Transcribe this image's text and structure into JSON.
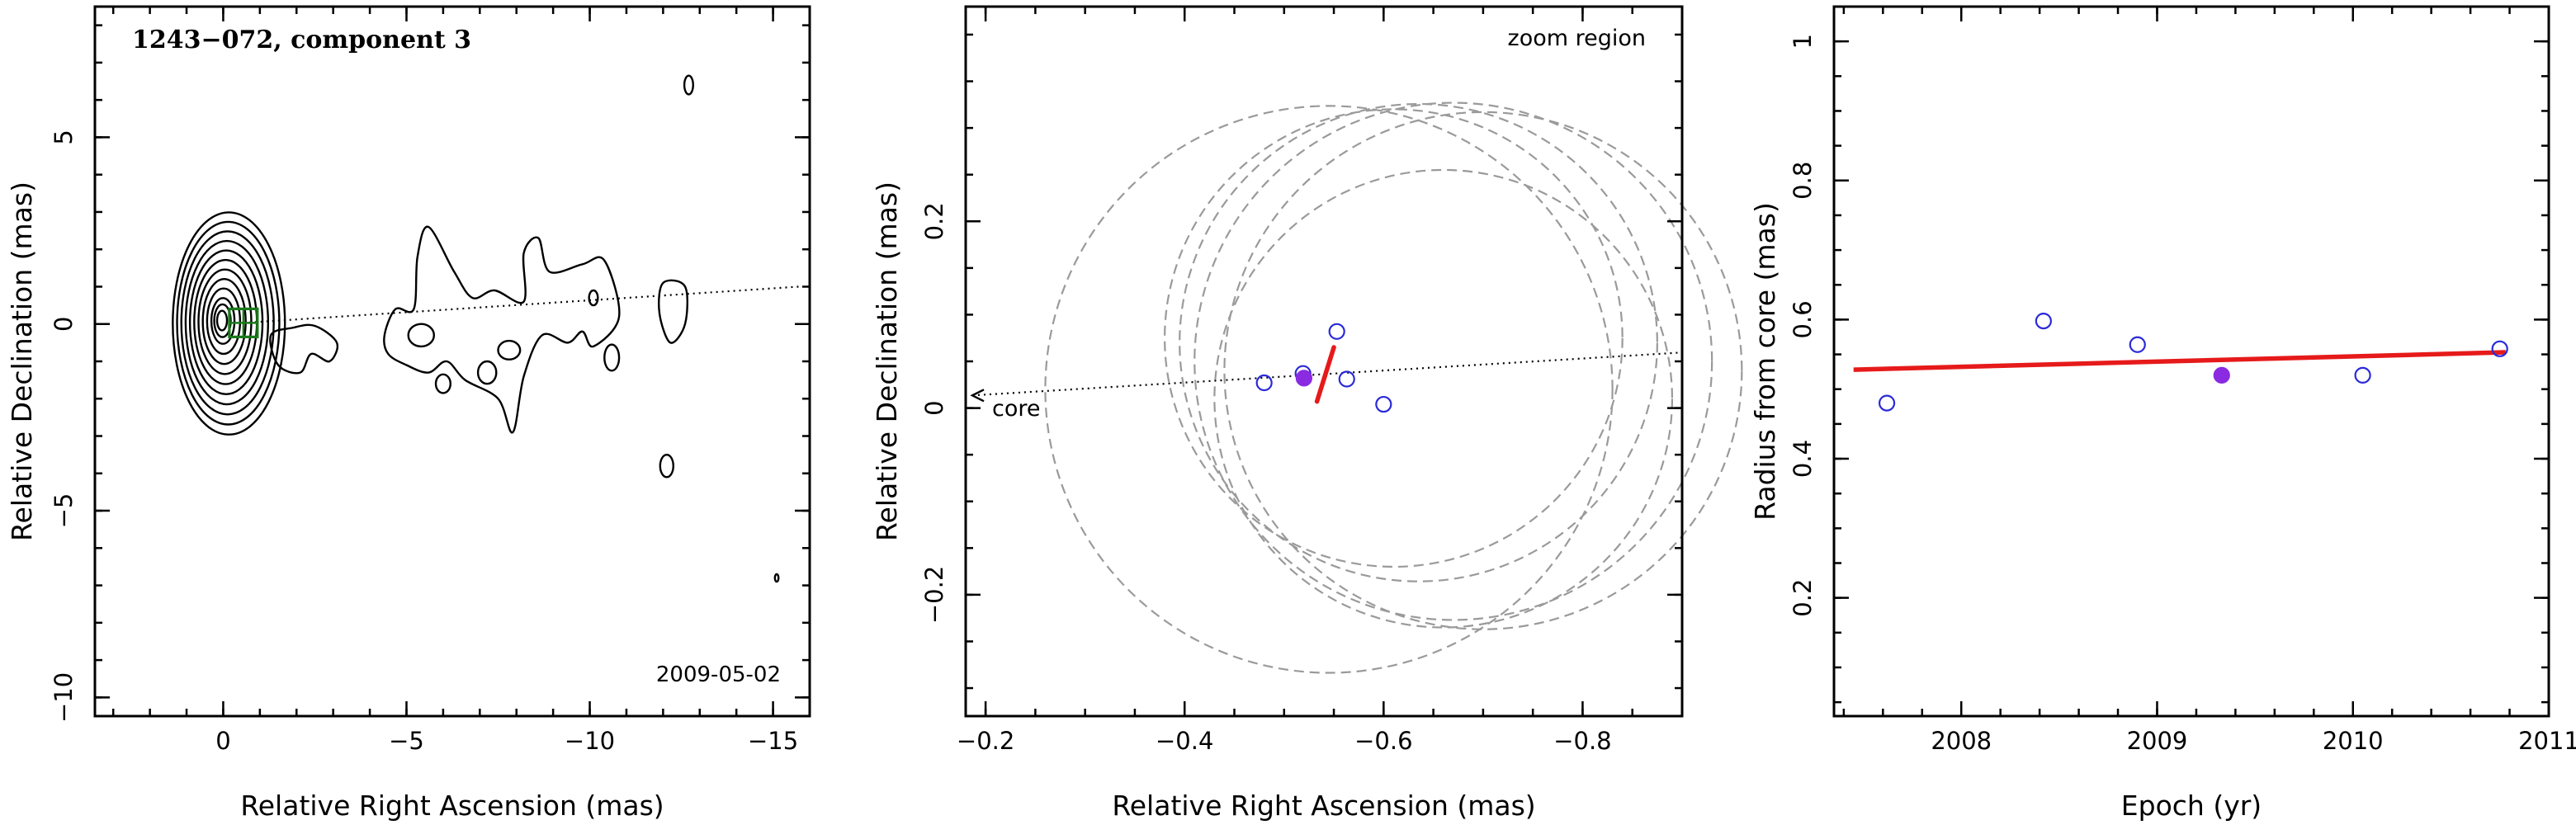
{
  "chart_data": [
    {
      "type": "scatter",
      "panel": "contour-map",
      "title": "1243−072, component 3",
      "xlabel": "Relative Right Ascension (mas)",
      "ylabel": "Relative Declination (mas)",
      "xlim": [
        3.5,
        -16
      ],
      "ylim": [
        -10.5,
        8.5
      ],
      "xticks": [
        0,
        -5,
        -10,
        -15
      ],
      "xtick_labels": [
        "0",
        "−5",
        "−10",
        "−15"
      ],
      "yticks": [
        -10,
        -5,
        0,
        5
      ],
      "ytick_labels": [
        "−10",
        "−5",
        "0",
        "5"
      ],
      "annotation": "2009-05-02",
      "marker": {
        "shape": "square",
        "color": "#1a7a1a",
        "x": -0.55,
        "y": 0.03
      },
      "direction_line": {
        "x": [
          -0.55,
          -15.7
        ],
        "y": [
          0.03,
          1.0
        ]
      },
      "contours": [
        {
          "kind": "core",
          "cx": 0.05,
          "cy": 0.1,
          "levels": [
            0.15,
            0.25,
            0.35,
            0.5,
            0.65,
            0.8,
            0.95,
            1.1,
            1.25,
            1.4,
            1.55,
            1.7
          ],
          "rx_scale": 0.9,
          "ry_scale": 1.75
        },
        {
          "kind": "blob",
          "points": [
            [
              -4.4,
              -0.3
            ],
            [
              -4.7,
              0.4
            ],
            [
              -5.2,
              0.4
            ],
            [
              -5.3,
              1.8
            ],
            [
              -5.6,
              2.6
            ],
            [
              -6.3,
              1.4
            ],
            [
              -6.8,
              0.7
            ],
            [
              -7.4,
              0.9
            ],
            [
              -8.2,
              0.6
            ],
            [
              -8.2,
              1.9
            ],
            [
              -8.6,
              2.3
            ],
            [
              -8.9,
              1.4
            ],
            [
              -9.8,
              1.6
            ],
            [
              -10.4,
              1.7
            ],
            [
              -10.8,
              0.2
            ],
            [
              -10.1,
              -0.6
            ],
            [
              -9.8,
              -0.2
            ],
            [
              -9.4,
              -0.5
            ],
            [
              -8.7,
              -0.3
            ],
            [
              -8.2,
              -1.4
            ],
            [
              -7.9,
              -2.9
            ],
            [
              -7.5,
              -2.0
            ],
            [
              -6.6,
              -1.5
            ],
            [
              -6.1,
              -1.0
            ],
            [
              -5.6,
              -1.3
            ],
            [
              -5.0,
              -1.1
            ],
            [
              -4.5,
              -0.8
            ]
          ]
        },
        {
          "kind": "blob",
          "points": [
            [
              -1.3,
              -0.3
            ],
            [
              -1.9,
              -0.1
            ],
            [
              -2.5,
              -0.05
            ],
            [
              -3.1,
              -0.5
            ],
            [
              -2.9,
              -1.0
            ],
            [
              -2.4,
              -0.8
            ],
            [
              -2.1,
              -1.3
            ],
            [
              -1.5,
              -1.1
            ]
          ]
        },
        {
          "kind": "blob",
          "points": [
            [
              -12.0,
              1.1
            ],
            [
              -12.6,
              1.0
            ],
            [
              -12.6,
              0.0
            ],
            [
              -12.2,
              -0.5
            ],
            [
              -11.9,
              0.3
            ]
          ]
        },
        {
          "kind": "ellipse",
          "cx": -5.4,
          "cy": -0.3,
          "rx": 0.35,
          "ry": 0.3
        },
        {
          "kind": "ellipse",
          "cx": -7.8,
          "cy": -0.7,
          "rx": 0.3,
          "ry": 0.25
        },
        {
          "kind": "ellipse",
          "cx": -10.1,
          "cy": 0.7,
          "rx": 0.12,
          "ry": 0.2
        },
        {
          "kind": "ellipse",
          "cx": -7.2,
          "cy": -1.3,
          "rx": 0.25,
          "ry": 0.3
        },
        {
          "kind": "ellipse",
          "cx": -6.0,
          "cy": -1.6,
          "rx": 0.2,
          "ry": 0.25
        },
        {
          "kind": "ellipse",
          "cx": -10.6,
          "cy": -0.9,
          "rx": 0.2,
          "ry": 0.35
        },
        {
          "kind": "ellipse",
          "cx": -12.1,
          "cy": -3.8,
          "rx": 0.18,
          "ry": 0.3
        },
        {
          "kind": "ellipse",
          "cx": -12.7,
          "cy": 6.4,
          "rx": 0.12,
          "ry": 0.25
        },
        {
          "kind": "ellipse",
          "cx": -15.1,
          "cy": -6.8,
          "rx": 0.05,
          "ry": 0.1
        }
      ]
    },
    {
      "type": "scatter",
      "panel": "zoom-region",
      "title": "zoom region",
      "xlabel": "Relative Right Ascension (mas)",
      "ylabel": "Relative Declination (mas)",
      "xlim": [
        -0.18,
        -0.9
      ],
      "ylim": [
        -0.33,
        0.43
      ],
      "xticks": [
        -0.2,
        -0.4,
        -0.6,
        -0.8
      ],
      "xtick_labels": [
        "−0.2",
        "−0.4",
        "−0.6",
        "−0.8"
      ],
      "yticks": [
        -0.2,
        0,
        0.2
      ],
      "ytick_labels": [
        "−0.2",
        "0",
        "0.2"
      ],
      "core_label": "core",
      "direction_line": {
        "x": [
          -0.18,
          -0.9
        ],
        "y": [
          0.0135,
          0.0595
        ]
      },
      "epochs": [
        {
          "x": -0.48,
          "y": 0.027,
          "filled": false
        },
        {
          "x": -0.519,
          "y": 0.037,
          "filled": false
        },
        {
          "x": -0.553,
          "y": 0.082,
          "filled": false
        },
        {
          "x": -0.563,
          "y": 0.031,
          "filled": false
        },
        {
          "x": -0.6,
          "y": 0.004,
          "filled": false
        },
        {
          "x": -0.52,
          "y": 0.032,
          "filled": true
        }
      ],
      "fit_segment": {
        "x": [
          -0.533,
          -0.55
        ],
        "y": [
          0.007,
          0.065
        ]
      },
      "error_circles": [
        {
          "cx": -0.545,
          "cy": 0.02,
          "r": 0.285
        },
        {
          "cx": -0.61,
          "cy": 0.075,
          "r": 0.23
        },
        {
          "cx": -0.67,
          "cy": 0.05,
          "r": 0.26
        },
        {
          "cx": -0.66,
          "cy": 0.01,
          "r": 0.23
        },
        {
          "cx": -0.635,
          "cy": 0.07,
          "r": 0.24
        },
        {
          "cx": -0.7,
          "cy": 0.04,
          "r": 0.26
        }
      ],
      "colors": {
        "points": "#2a2ad8",
        "filled_point": "#8a2be2",
        "fit": "#e61a1a",
        "circles": "#9a9a9a"
      }
    },
    {
      "type": "scatter",
      "panel": "radius-vs-epoch",
      "xlabel": "Epoch (yr)",
      "ylabel": "Radius from core (mas)",
      "xlim": [
        2007.35,
        2011.0
      ],
      "ylim": [
        0.03,
        1.05
      ],
      "xticks": [
        2008,
        2009,
        2010,
        2011
      ],
      "xtick_labels": [
        "2008",
        "2009",
        "2010",
        "2011"
      ],
      "yticks": [
        0.2,
        0.4,
        0.6,
        0.8,
        1
      ],
      "ytick_labels": [
        "0.2",
        "0.4",
        "0.6",
        "0.8",
        "1"
      ],
      "points": [
        {
          "x": 2007.62,
          "y": 0.48,
          "filled": false
        },
        {
          "x": 2008.42,
          "y": 0.598,
          "filled": false
        },
        {
          "x": 2008.9,
          "y": 0.564,
          "filled": false
        },
        {
          "x": 2009.33,
          "y": 0.52,
          "filled": true
        },
        {
          "x": 2010.05,
          "y": 0.52,
          "filled": false
        },
        {
          "x": 2010.75,
          "y": 0.558,
          "filled": false
        }
      ],
      "fit_line": {
        "x": [
          2007.45,
          2010.78
        ],
        "y": [
          0.528,
          0.553
        ]
      },
      "colors": {
        "points": "#2a2ad8",
        "filled_point": "#8a2be2",
        "fit": "#e61a1a"
      }
    }
  ]
}
